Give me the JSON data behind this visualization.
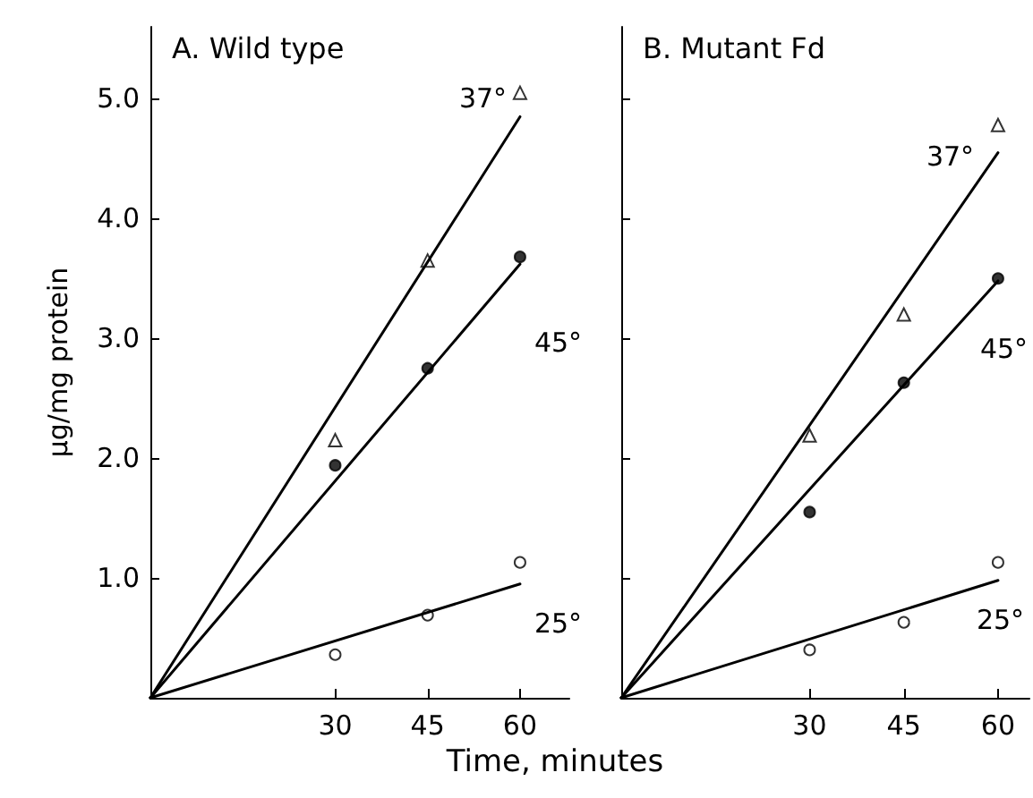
{
  "chart_data": [
    {
      "type": "scatter",
      "title": "A. Wild type",
      "xlabel": "Time, minutes",
      "ylabel": "μg/mg protein",
      "xlim": [
        0,
        68
      ],
      "ylim": [
        0,
        5.6
      ],
      "xticks": [
        30,
        45,
        60
      ],
      "yticks": [
        {
          "value": 1,
          "label": "1.0"
        },
        {
          "value": 2,
          "label": "2.0"
        },
        {
          "value": 3,
          "label": "3.0"
        },
        {
          "value": 4,
          "label": "4.0"
        },
        {
          "value": 5,
          "label": "5.0"
        }
      ],
      "grid": false,
      "legend": false,
      "series": [
        {
          "marker": "triangle",
          "color": "#ffffff",
          "x": [
            30,
            45,
            60
          ],
          "values": [
            2.15,
            3.65,
            5.05
          ]
        },
        {
          "marker": "circle",
          "color": "#000000",
          "x": [
            30,
            45,
            60
          ],
          "values": [
            1.94,
            2.75,
            3.68
          ]
        },
        {
          "marker": "circle",
          "color": "#ffffff",
          "x": [
            30,
            45,
            60
          ],
          "values": [
            0.36,
            0.69,
            1.13
          ]
        },
        {
          "type": "line",
          "name": "37°",
          "color": "#000000",
          "x": [
            0,
            60
          ],
          "values": [
            0,
            4.85
          ]
        },
        {
          "type": "line",
          "name": "45°",
          "color": "#000000",
          "x": [
            0,
            60
          ],
          "values": [
            0,
            3.62
          ]
        },
        {
          "type": "line",
          "name": "25°",
          "color": "#000000",
          "x": [
            0,
            60
          ],
          "values": [
            0,
            0.95
          ]
        }
      ]
    },
    {
      "type": "scatter",
      "title": "B. Mutant Fd",
      "xlim": [
        0,
        65
      ],
      "ylim": [
        0,
        5.6
      ],
      "xticks": [
        30,
        45,
        60
      ],
      "yticks": [
        {
          "value": 1,
          "label": null
        },
        {
          "value": 2,
          "label": null
        },
        {
          "value": 3,
          "label": null
        },
        {
          "value": 4,
          "label": null
        },
        {
          "value": 5,
          "label": null
        }
      ],
      "tick_labels": "x",
      "grid": false,
      "legend": false,
      "series": [
        {
          "marker": "triangle",
          "color": "#ffffff",
          "x": [
            30,
            45,
            60
          ],
          "values": [
            2.19,
            3.2,
            4.78
          ]
        },
        {
          "marker": "circle",
          "color": "#000000",
          "x": [
            30,
            45,
            60
          ],
          "values": [
            1.55,
            2.63,
            3.5
          ]
        },
        {
          "marker": "circle",
          "color": "#ffffff",
          "x": [
            30,
            45,
            60
          ],
          "values": [
            0.4,
            0.63,
            1.13
          ]
        },
        {
          "type": "line",
          "name": "37°",
          "color": "#000000",
          "x": [
            0,
            60
          ],
          "values": [
            0,
            4.55
          ]
        },
        {
          "type": "line",
          "name": "45°",
          "color": "#000000",
          "x": [
            0,
            60
          ],
          "values": [
            0,
            3.48
          ]
        },
        {
          "type": "line",
          "name": "25°",
          "color": "#000000",
          "x": [
            0,
            60
          ],
          "values": [
            0,
            0.98
          ]
        }
      ]
    }
  ]
}
